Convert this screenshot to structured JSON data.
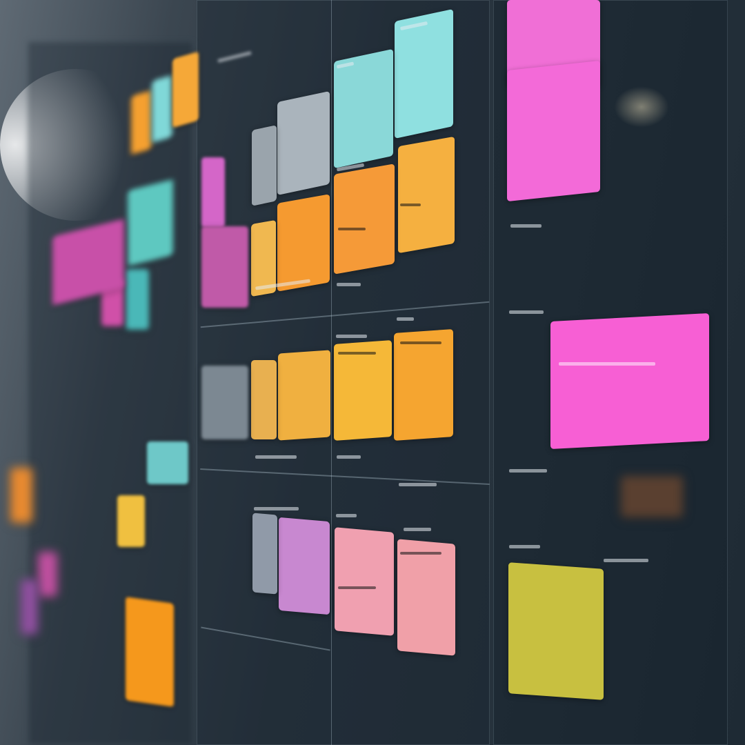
{
  "board": {
    "type": "kanban-board",
    "background": "#26323c",
    "card_colors": [
      "#f06fd6",
      "#f36ad8",
      "#f75fd4",
      "#c8c040",
      "#8fe0e0",
      "#8ad8d8",
      "#aab4bc",
      "#9aa4ac",
      "#f5b040",
      "#f59a38",
      "#f59a30",
      "#f0b850",
      "#d466c8",
      "#c05aa8",
      "#f5a530",
      "#f5b838",
      "#f0b040",
      "#e8b050",
      "#7c8892",
      "#f0a0b0",
      "#f0a0a8",
      "#c888d0",
      "#909aa8",
      "#f5981c",
      "#f0c040",
      "#6ec8c8",
      "#5ec8c0",
      "#4ab8b8",
      "#d050a8",
      "#c850a8",
      "#f5a030",
      "#80d8d8",
      "#f5a838",
      "#e88a30",
      "#c050a0",
      "#9050a0",
      "#5a4030"
    ]
  }
}
